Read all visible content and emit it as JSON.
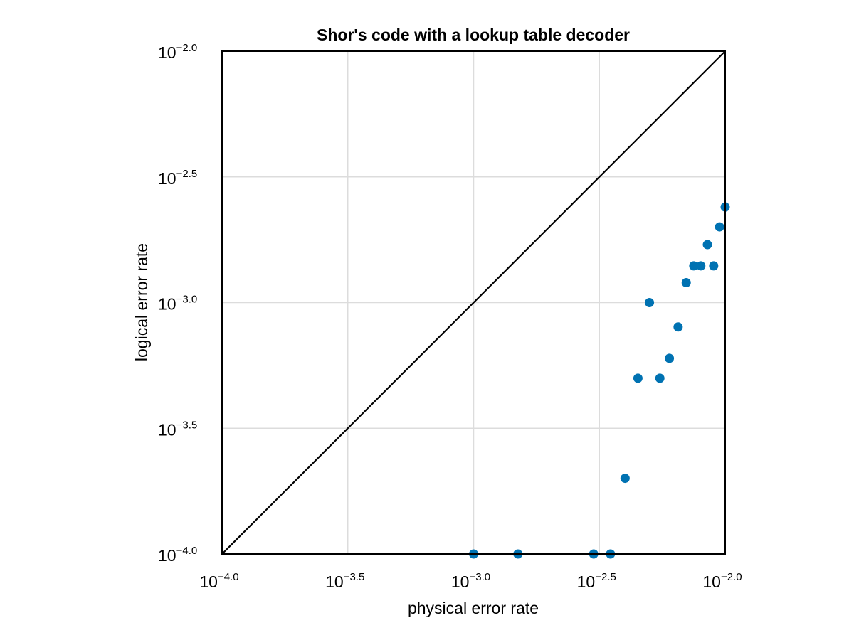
{
  "chart_data": {
    "type": "scatter",
    "title": "Shor's code with a lookup table decoder",
    "xlabel": "physical error rate",
    "ylabel": "logical error rate",
    "xscale": "log10",
    "yscale": "log10",
    "xlim": [
      0.0001,
      0.01
    ],
    "ylim": [
      0.0001,
      0.01
    ],
    "grid": true,
    "x_ticks": [
      {
        "base": "10",
        "exp": "−4.0"
      },
      {
        "base": "10",
        "exp": "−3.5"
      },
      {
        "base": "10",
        "exp": "−3.0"
      },
      {
        "base": "10",
        "exp": "−2.5"
      },
      {
        "base": "10",
        "exp": "−2.0"
      }
    ],
    "y_ticks": [
      {
        "base": "10",
        "exp": "−4.0"
      },
      {
        "base": "10",
        "exp": "−3.5"
      },
      {
        "base": "10",
        "exp": "−3.0"
      },
      {
        "base": "10",
        "exp": "−2.5"
      },
      {
        "base": "10",
        "exp": "−2.0"
      }
    ],
    "reference_line": {
      "type": "y=x",
      "color": "#000000"
    },
    "series": [
      {
        "color": "#0072b2",
        "x": [
          0.001,
          0.0015,
          0.003,
          0.0035,
          0.004,
          0.0045,
          0.005,
          0.0055,
          0.006,
          0.0065,
          0.007,
          0.0075,
          0.008,
          0.0085,
          0.009,
          0.0095,
          0.01
        ],
        "y": [
          0.0001,
          0.0001,
          0.0001,
          0.0001,
          0.0002,
          0.0005,
          0.001,
          0.0005,
          0.0006,
          0.0008,
          0.0012,
          0.0014,
          0.0014,
          0.0017,
          0.0014,
          0.002,
          0.0024
        ]
      }
    ]
  }
}
